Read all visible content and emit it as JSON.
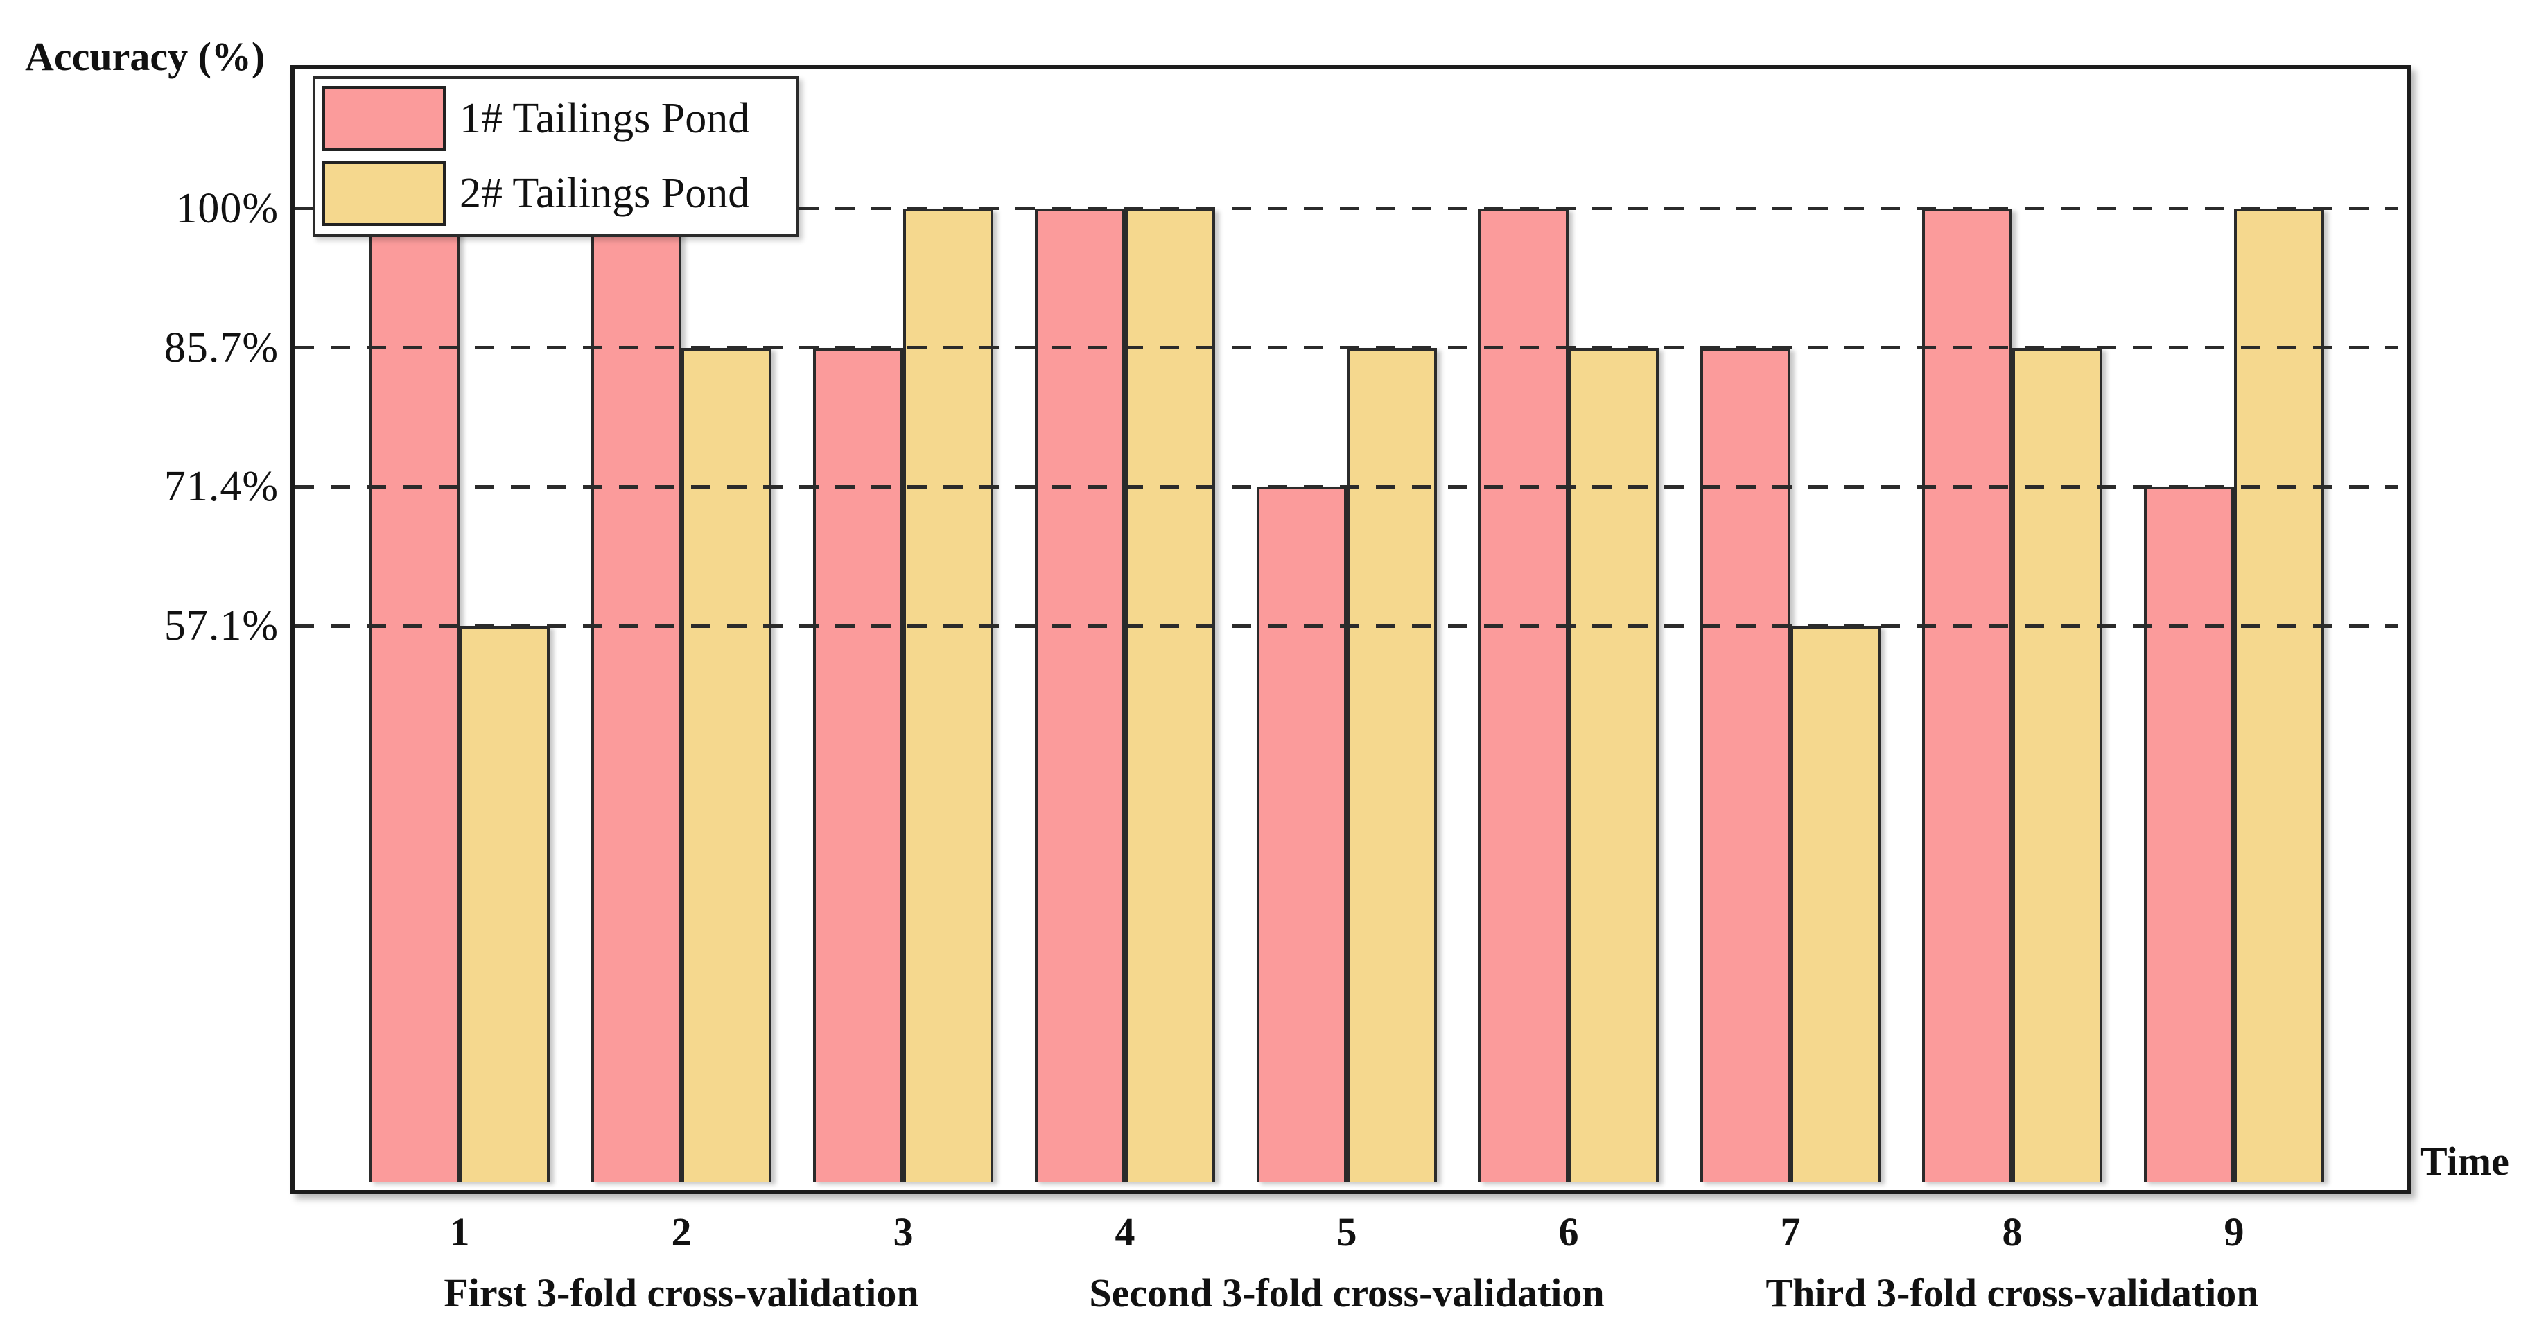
{
  "figure": {
    "y_axis_title": "Accuracy (%)",
    "x_axis_title": "Time"
  },
  "chart_data": {
    "type": "bar",
    "title": "",
    "ylabel": "Accuracy (%)",
    "xlabel": "Time",
    "categories": [
      "1",
      "2",
      "3",
      "4",
      "5",
      "6",
      "7",
      "8",
      "9"
    ],
    "series": [
      {
        "name": "1# Tailings Pond",
        "color": "#FB9B9B",
        "values": [
          100,
          100,
          85.7,
          100,
          71.4,
          100,
          85.7,
          100,
          71.4
        ]
      },
      {
        "name": "2# Tailings Pond",
        "color": "#F5D88E",
        "values": [
          57.1,
          85.7,
          100,
          100,
          85.7,
          85.7,
          57.1,
          85.7,
          100
        ]
      }
    ],
    "ytick_labels": [
      "100%",
      "85.7%",
      "71.4%",
      "57.1%"
    ],
    "ytick_values": [
      100,
      85.7,
      71.4,
      57.1
    ],
    "ylim": [
      0,
      114.3
    ],
    "grid": "horizontal-dashed",
    "gridlines_over_bars": true,
    "legend_position": "top-left",
    "group_labels": [
      {
        "label": "First 3-fold cross-validation",
        "center_category": "2"
      },
      {
        "label": "Second 3-fold cross-validation",
        "center_category": "5"
      },
      {
        "label": "Third 3-fold cross-validation",
        "center_category": "8"
      }
    ]
  },
  "colors": {
    "bar_edge": "#2b2b2b",
    "grid": "#2b2b2b",
    "plot_border": "#1c1c1c",
    "text": "#111111",
    "background": "#ffffff"
  }
}
